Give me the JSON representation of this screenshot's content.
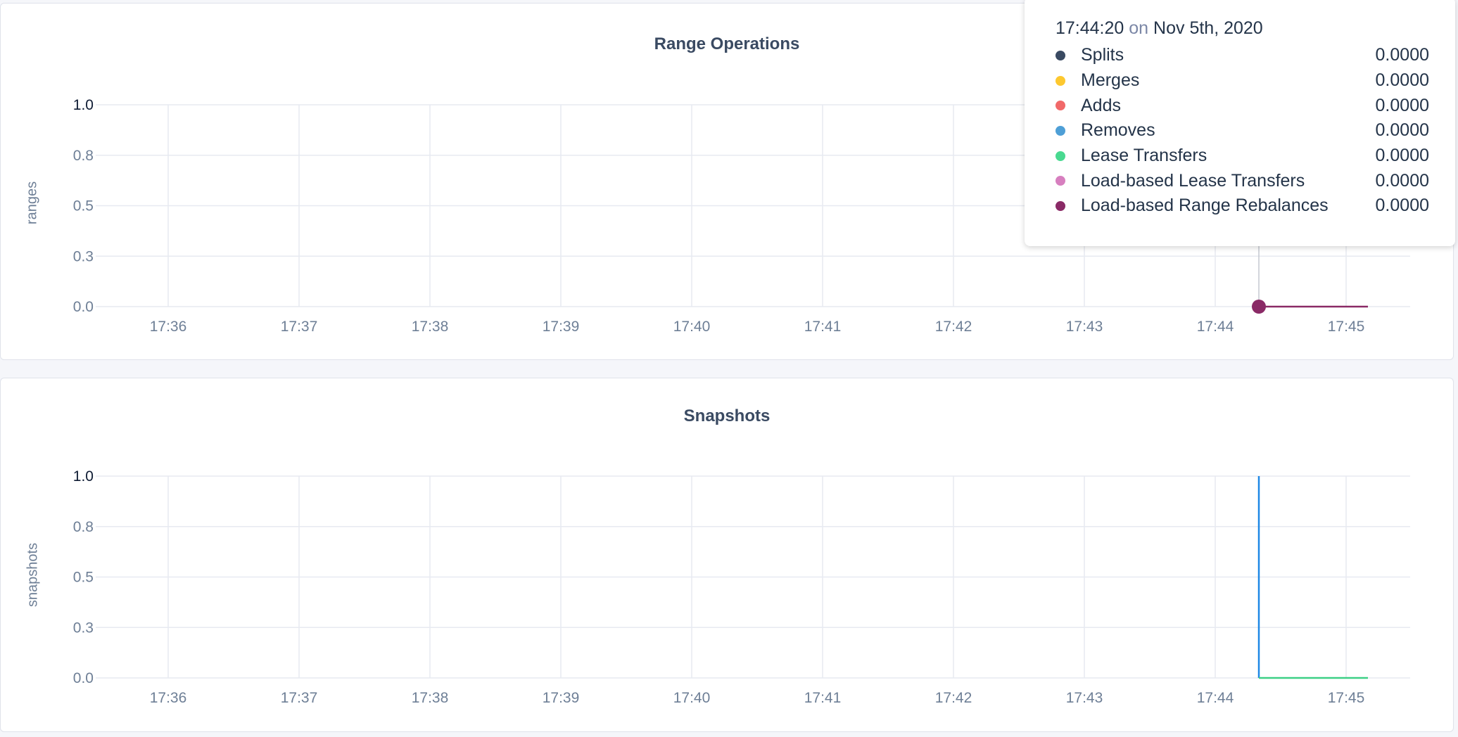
{
  "chart_data": [
    {
      "type": "line",
      "title": "Range Operations",
      "ylabel": "ranges",
      "ylim": [
        0,
        1
      ],
      "y_ticks": [
        {
          "v": 1.0,
          "label": "1.0"
        },
        {
          "v": 0.75,
          "label": "0.8"
        },
        {
          "v": 0.5,
          "label": "0.5"
        },
        {
          "v": 0.25,
          "label": "0.3"
        },
        {
          "v": 0,
          "label": "0.0"
        }
      ],
      "x_ticks": [
        "17:36",
        "17:37",
        "17:38",
        "17:39",
        "17:40",
        "17:41",
        "17:42",
        "17:43",
        "17:44",
        "17:45"
      ],
      "grid": true,
      "series": [
        {
          "name": "Load-based Range Rebalances",
          "color": "#8a2a66",
          "x": [
            "17:44:20",
            "17:45:10"
          ],
          "y": [
            0,
            0
          ]
        }
      ],
      "hover_marker": {
        "x": "17:44:20",
        "y": 0,
        "color": "#8a2a66"
      }
    },
    {
      "type": "line",
      "title": "Snapshots",
      "ylabel": "snapshots",
      "ylim": [
        0,
        1
      ],
      "y_ticks": [
        {
          "v": 1.0,
          "label": "1.0"
        },
        {
          "v": 0.75,
          "label": "0.8"
        },
        {
          "v": 0.5,
          "label": "0.5"
        },
        {
          "v": 0.25,
          "label": "0.3"
        },
        {
          "v": 0,
          "label": "0.0"
        }
      ],
      "x_ticks": [
        "17:36",
        "17:37",
        "17:38",
        "17:39",
        "17:40",
        "17:41",
        "17:42",
        "17:43",
        "17:44",
        "17:45"
      ],
      "grid": true,
      "series": [
        {
          "color": "#1e88e5",
          "x": [
            "17:44:20",
            "17:44:20"
          ],
          "y": [
            1,
            0
          ]
        },
        {
          "color": "#3ccf86",
          "x": [
            "17:44:20",
            "17:45:10"
          ],
          "y": [
            0,
            0
          ]
        }
      ]
    }
  ],
  "tooltip": {
    "time": "17:44:20",
    "on": "on",
    "date": "Nov 5th, 2020",
    "items": [
      {
        "name": "Splits",
        "value": "0.0000",
        "color": "#3a4a62"
      },
      {
        "name": "Merges",
        "value": "0.0000",
        "color": "#fdc82f"
      },
      {
        "name": "Adds",
        "value": "0.0000",
        "color": "#f16969"
      },
      {
        "name": "Removes",
        "value": "0.0000",
        "color": "#4e9fd6"
      },
      {
        "name": "Lease Transfers",
        "value": "0.0000",
        "color": "#49d990"
      },
      {
        "name": "Load-based Lease Transfers",
        "value": "0.0000",
        "color": "#d77fbf"
      },
      {
        "name": "Load-based Range Rebalances",
        "value": "0.0000",
        "color": "#8a2a66"
      }
    ]
  }
}
